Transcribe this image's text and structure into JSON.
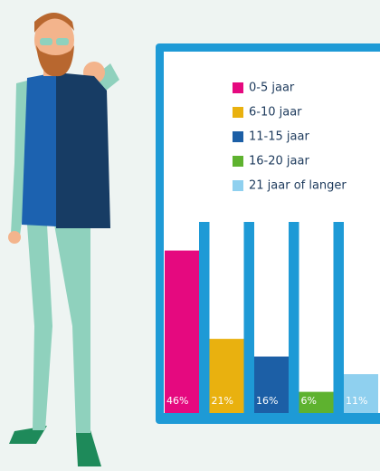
{
  "chart_data": {
    "type": "bar",
    "categories": [
      "0-5 jaar",
      "6-10 jaar",
      "11-15 jaar",
      "16-20 jaar",
      "21 jaar of langer"
    ],
    "values": [
      46,
      21,
      16,
      6,
      11
    ],
    "value_labels": [
      "46%",
      "21%",
      "16%",
      "6%",
      "11%"
    ],
    "colors": [
      "#e5097f",
      "#e9b10f",
      "#1c5fa6",
      "#5eb22f",
      "#8fd0ef"
    ]
  }
}
